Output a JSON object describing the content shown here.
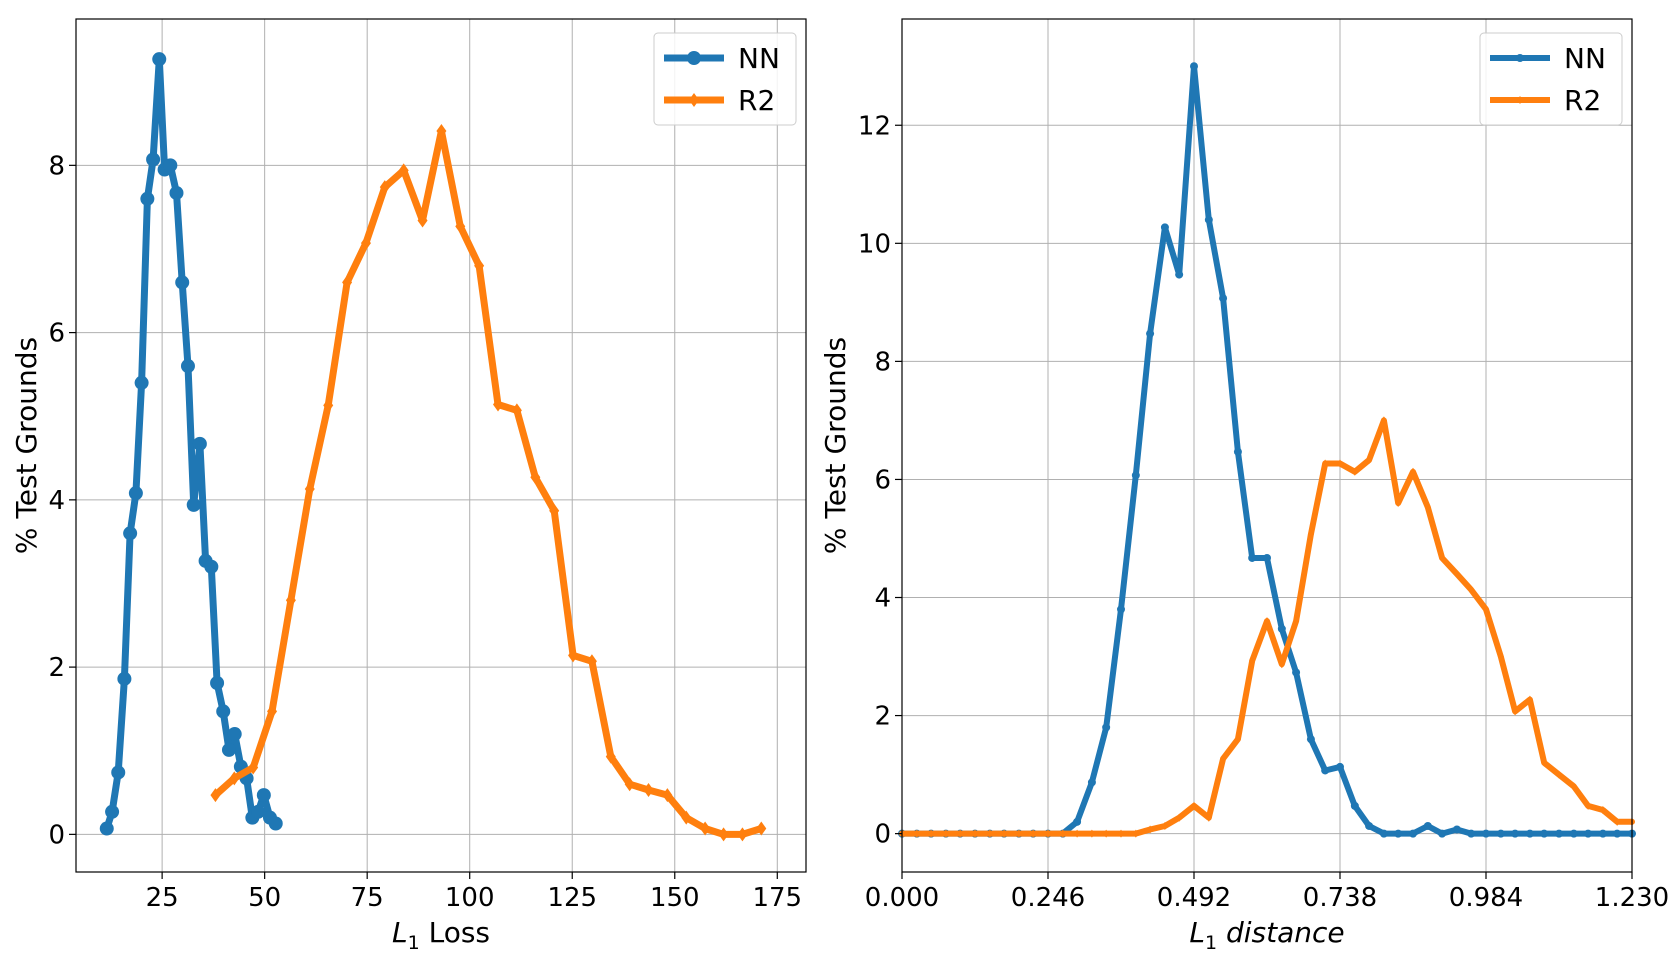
{
  "chart_data": [
    {
      "type": "line",
      "xlabel_sym": "L",
      "xlabel_sub": "1",
      "xlabel_rest": " Loss",
      "ylabel": "% Test Grounds",
      "xlim": [
        4,
        182
      ],
      "ylim": [
        -0.45,
        9.75
      ],
      "xticks": [
        25,
        50,
        75,
        100,
        125,
        150,
        175
      ],
      "xtick_labels": [
        "25",
        "50",
        "75",
        "100",
        "125",
        "150",
        "175"
      ],
      "yticks": [
        0,
        2,
        4,
        6,
        8
      ],
      "ytick_labels": [
        "0",
        "2",
        "4",
        "6",
        "8"
      ],
      "grid": true,
      "legend": "top-right",
      "series": [
        {
          "name": "NN",
          "color": "#1f77b4",
          "marker": "circle",
          "x": [
            11.5,
            12.8,
            14.3,
            15.8,
            17.2,
            18.6,
            20.0,
            21.4,
            22.8,
            24.3,
            25.6,
            27.0,
            28.5,
            29.9,
            31.3,
            32.7,
            34.2,
            35.6,
            37.0,
            38.4,
            39.9,
            41.3,
            42.7,
            44.2,
            45.6,
            47.0,
            48.4,
            49.8,
            51.3,
            52.7
          ],
          "y": [
            0.07,
            0.27,
            0.74,
            1.86,
            3.6,
            4.08,
            5.4,
            7.6,
            8.07,
            9.27,
            7.95,
            8.0,
            7.67,
            6.6,
            5.6,
            3.94,
            4.67,
            3.27,
            3.2,
            1.81,
            1.47,
            1.01,
            1.2,
            0.81,
            0.67,
            0.2,
            0.27,
            0.47,
            0.2,
            0.13
          ]
        },
        {
          "name": "R2",
          "color": "#ff7f0e",
          "marker": "diamond",
          "x": [
            38.0,
            42.6,
            47.2,
            51.8,
            56.4,
            61.0,
            65.5,
            70.1,
            74.7,
            79.3,
            83.9,
            88.5,
            93.1,
            97.7,
            102.3,
            106.9,
            111.5,
            116.0,
            120.6,
            125.2,
            129.8,
            134.4,
            139.0,
            143.6,
            148.2,
            152.8,
            157.4,
            161.9,
            166.5,
            171.1
          ],
          "y": [
            0.47,
            0.67,
            0.8,
            1.47,
            2.8,
            4.13,
            5.13,
            6.6,
            7.07,
            7.74,
            7.94,
            7.34,
            8.41,
            7.27,
            6.8,
            5.14,
            5.07,
            4.27,
            3.87,
            2.14,
            2.07,
            0.93,
            0.6,
            0.53,
            0.47,
            0.2,
            0.07,
            0.0,
            0.0,
            0.07
          ]
        }
      ]
    },
    {
      "type": "line",
      "xlabel_sym": "L",
      "xlabel_sub": "1",
      "xlabel_rest": " distance",
      "ylabel": "% Test Grounds",
      "xlim": [
        0.0,
        1.23
      ],
      "ylim": [
        -0.65,
        13.8
      ],
      "xticks": [
        0.0,
        0.246,
        0.492,
        0.738,
        0.984,
        1.23
      ],
      "xtick_labels": [
        "0.000",
        "0.246",
        "0.492",
        "0.738",
        "0.984",
        "1.230"
      ],
      "yticks": [
        0,
        2,
        4,
        6,
        8,
        10,
        12
      ],
      "ytick_labels": [
        "0",
        "2",
        "4",
        "6",
        "8",
        "10",
        "12"
      ],
      "grid": true,
      "legend": "top-right",
      "series": [
        {
          "name": "NN",
          "color": "#1f77b4",
          "marker": "point",
          "x": [
            0.0,
            0.025,
            0.049,
            0.074,
            0.098,
            0.123,
            0.148,
            0.172,
            0.197,
            0.221,
            0.246,
            0.271,
            0.295,
            0.32,
            0.344,
            0.369,
            0.394,
            0.418,
            0.443,
            0.467,
            0.492,
            0.517,
            0.541,
            0.566,
            0.59,
            0.615,
            0.64,
            0.664,
            0.689,
            0.713,
            0.738,
            0.763,
            0.787,
            0.812,
            0.836,
            0.861,
            0.886,
            0.91,
            0.935,
            0.959,
            0.984,
            1.009,
            1.033,
            1.058,
            1.082,
            1.107,
            1.132,
            1.156,
            1.181,
            1.205,
            1.23
          ],
          "y": [
            0,
            0,
            0,
            0,
            0,
            0,
            0,
            0,
            0,
            0,
            0,
            0.0,
            0.2,
            0.87,
            1.8,
            3.8,
            6.07,
            8.47,
            10.27,
            9.47,
            13.0,
            10.4,
            9.07,
            6.47,
            4.67,
            4.67,
            3.47,
            2.73,
            1.6,
            1.07,
            1.13,
            0.47,
            0.13,
            0.0,
            0.0,
            0.0,
            0.13,
            0.0,
            0.07,
            0,
            0,
            0,
            0,
            0,
            0,
            0,
            0,
            0,
            0,
            0,
            0
          ]
        },
        {
          "name": "R2",
          "color": "#ff7f0e",
          "marker": "diamond-small",
          "x": [
            0.0,
            0.025,
            0.049,
            0.074,
            0.098,
            0.123,
            0.148,
            0.172,
            0.197,
            0.221,
            0.246,
            0.271,
            0.295,
            0.32,
            0.344,
            0.369,
            0.394,
            0.418,
            0.443,
            0.467,
            0.492,
            0.517,
            0.541,
            0.566,
            0.59,
            0.615,
            0.64,
            0.664,
            0.689,
            0.713,
            0.738,
            0.763,
            0.787,
            0.812,
            0.836,
            0.861,
            0.886,
            0.91,
            0.935,
            0.959,
            0.984,
            1.009,
            1.033,
            1.058,
            1.082,
            1.107,
            1.132,
            1.156,
            1.181,
            1.205,
            1.23
          ],
          "y": [
            0,
            0,
            0,
            0,
            0,
            0,
            0,
            0,
            0,
            0,
            0,
            0,
            0,
            0,
            0,
            0,
            0,
            0.07,
            0.13,
            0.27,
            0.47,
            0.27,
            1.27,
            1.6,
            2.93,
            3.6,
            2.87,
            3.6,
            5.07,
            6.27,
            6.27,
            6.13,
            6.33,
            7.0,
            5.6,
            6.13,
            5.53,
            4.67,
            4.4,
            4.13,
            3.8,
            3.0,
            2.07,
            2.27,
            1.2,
            1.0,
            0.8,
            0.47,
            0.4,
            0.2,
            0.2
          ]
        }
      ]
    }
  ]
}
